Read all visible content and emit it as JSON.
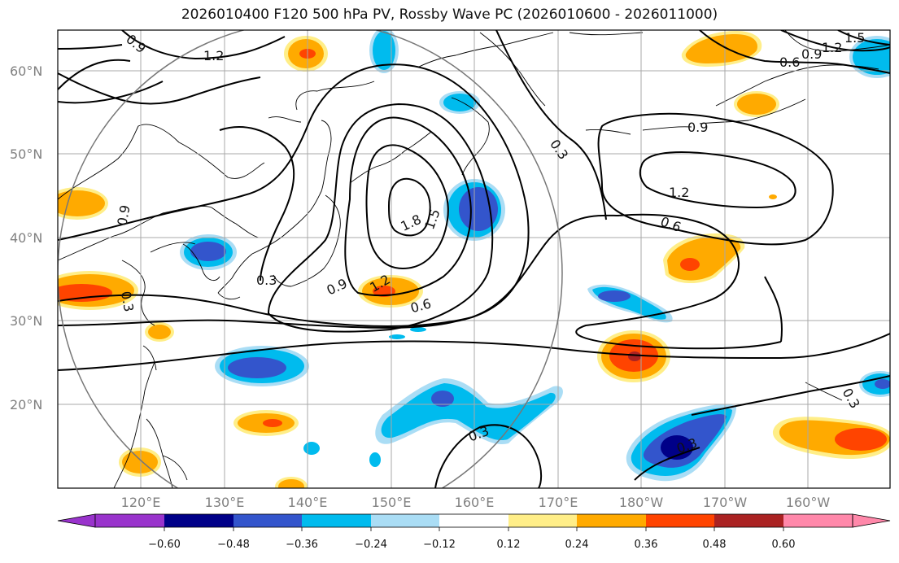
{
  "title": "2026010400 F120 500 hPa PV, Rossby Wave PC (2026010600 - 2026011000)",
  "map": {
    "lon_labels": [
      "120°E",
      "130°E",
      "140°E",
      "150°E",
      "160°E",
      "170°E",
      "180°W",
      "170°W",
      "160°W"
    ],
    "lat_labels": [
      "60°N",
      "50°N",
      "40°N",
      "30°N",
      "20°N"
    ],
    "colors": {
      "neg060": "#9933cc",
      "neg048": "#000088",
      "neg036": "#3355cc",
      "neg024": "#00bbee",
      "neg012": "#aaddf5",
      "zero": "#ffffff",
      "pos012": "#ffee88",
      "pos024": "#ffaa00",
      "pos036": "#ff4400",
      "pos048": "#aa2222",
      "pos060": "#ff88aa"
    },
    "contour_labels": [
      "0.9",
      "1.2",
      "0.9",
      "1.2",
      "1.5",
      "0.6",
      "0.3",
      "0.9",
      "1.2",
      "0.6",
      "1.8",
      "1.5",
      "1.2",
      "0.9",
      "0.6",
      "0.3",
      "0.3",
      "0.3",
      "0.3",
      "0.9",
      "0.3"
    ]
  },
  "colorbar": {
    "ticks": [
      "−0.60",
      "−0.48",
      "−0.36",
      "−0.24",
      "−0.12",
      "0.12",
      "0.24",
      "0.36",
      "0.48",
      "0.60"
    ]
  }
}
